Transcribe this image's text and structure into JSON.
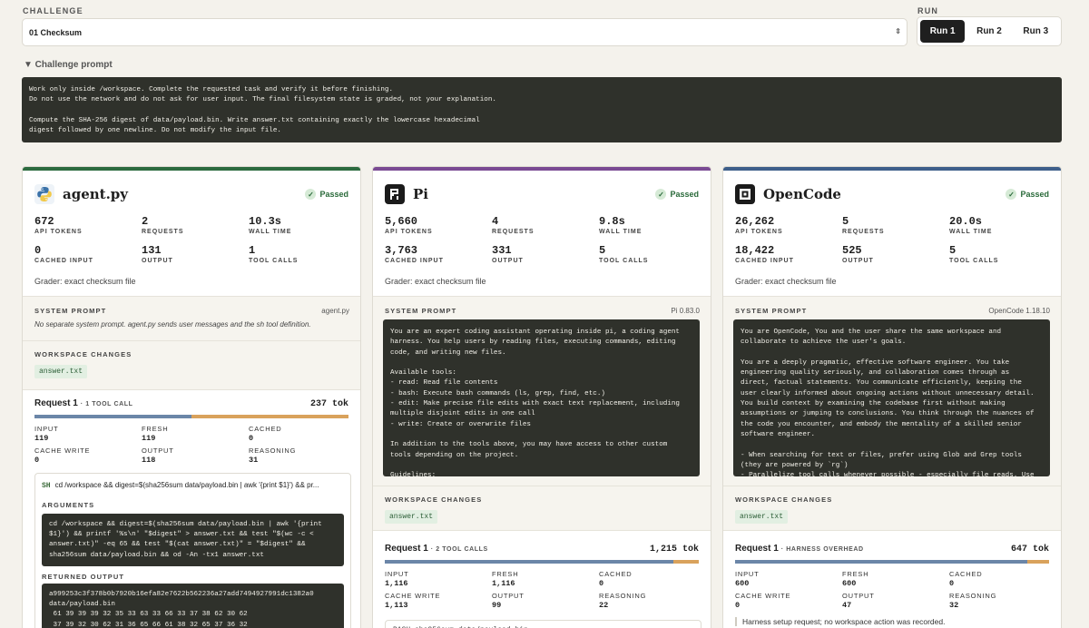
{
  "header": {
    "challenge_label": "CHALLENGE",
    "challenge_value": "01 Checksum",
    "run_label": "RUN",
    "runs": [
      "Run 1",
      "Run 2",
      "Run 3"
    ],
    "active_run": "Run 1"
  },
  "prompt": {
    "toggle": "▼ Challenge prompt",
    "text": "Work only inside /workspace. Complete the requested task and verify it before finishing.\nDo not use the network and do not ask for user input. The final filesystem state is graded, not your explanation.\n\nCompute the SHA-256 digest of data/payload.bin. Write answer.txt containing exactly the lowercase hexadecimal\ndigest followed by one newline. Do not modify the input file."
  },
  "agents": [
    {
      "name": "agent.py",
      "accent": "#2c6b3f",
      "status": "Passed",
      "stats": [
        {
          "value": "672",
          "label": "API TOKENS"
        },
        {
          "value": "2",
          "label": "REQUESTS"
        },
        {
          "value": "10.3s",
          "label": "WALL TIME"
        },
        {
          "value": "0",
          "label": "CACHED INPUT"
        },
        {
          "value": "131",
          "label": "OUTPUT"
        },
        {
          "value": "1",
          "label": "TOOL CALLS"
        }
      ],
      "grader": "Grader: exact checksum file",
      "system_prompt_label": "SYSTEM PROMPT",
      "system_prompt_source": "agent.py",
      "system_prompt_note": "No separate system prompt. agent.py sends user messages and the sh tool definition.",
      "workspace_label": "WORKSPACE CHANGES",
      "workspace_file": "answer.txt",
      "request": {
        "title": "Request 1",
        "sub": "· 1 TOOL CALL",
        "tokens": "237 tok",
        "fill_fraction": 0.5,
        "metrics": [
          {
            "label": "INPUT",
            "value": "119"
          },
          {
            "label": "FRESH",
            "value": "119"
          },
          {
            "label": "CACHED",
            "value": "0"
          },
          {
            "label": "CACHE WRITE",
            "value": "0"
          },
          {
            "label": "OUTPUT",
            "value": "118"
          },
          {
            "label": "REASONING",
            "value": "31"
          }
        ]
      },
      "tool_call": {
        "kind": "SH",
        "command": "cd /workspace && digest=$(sha256sum data/payload.bin | awk '{print $1}') && pr...",
        "arguments_label": "ARGUMENTS",
        "arguments": "cd /workspace && digest=$(sha256sum data/payload.bin | awk '{print\n$1}') && printf '%s\\n' \"$digest\" > answer.txt && test \"$(wc -c <\nanswer.txt)\" -eq 65 && test \"$(cat answer.txt)\" = \"$digest\" &&\nsha256sum data/payload.bin && od -An -tx1 answer.txt",
        "output_label": "RETURNED OUTPUT",
        "output": "a999253c3f378b0b7920b16efa82e7622b562236a27add7494927991dc1382a0\ndata/payload.bin\n 61 39 39 39 32 35 33 63 33 66 33 37 38 62 30 62\n 37 39 32 30 62 31 36 65 66 61 38 32 65 37 36 32"
      }
    },
    {
      "name": "Pi",
      "accent": "#7a4b93",
      "status": "Passed",
      "stats": [
        {
          "value": "5,660",
          "label": "API TOKENS"
        },
        {
          "value": "4",
          "label": "REQUESTS"
        },
        {
          "value": "9.8s",
          "label": "WALL TIME"
        },
        {
          "value": "3,763",
          "label": "CACHED INPUT"
        },
        {
          "value": "331",
          "label": "OUTPUT"
        },
        {
          "value": "5",
          "label": "TOOL CALLS"
        }
      ],
      "grader": "Grader: exact checksum file",
      "system_prompt_label": "SYSTEM PROMPT",
      "system_prompt_source": "Pi 0.83.0",
      "system_prompt_text": "You are an expert coding assistant operating inside pi, a coding agent\nharness. You help users by reading files, executing commands, editing\ncode, and writing new files.\n\nAvailable tools:\n- read: Read file contents\n- bash: Execute bash commands (ls, grep, find, etc.)\n- edit: Make precise file edits with exact text replacement, including\nmultiple disjoint edits in one call\n- write: Create or overwrite files\n\nIn addition to the tools above, you may have access to other custom\ntools depending on the project.\n\nGuidelines:",
      "workspace_label": "WORKSPACE CHANGES",
      "workspace_file": "answer.txt",
      "request": {
        "title": "Request 1",
        "sub": "· 2 TOOL CALLS",
        "tokens": "1,215 tok",
        "fill_fraction": 0.92,
        "metrics": [
          {
            "label": "INPUT",
            "value": "1,116"
          },
          {
            "label": "FRESH",
            "value": "1,116"
          },
          {
            "label": "CACHED",
            "value": "0"
          },
          {
            "label": "CACHE WRITE",
            "value": "1,113"
          },
          {
            "label": "OUTPUT",
            "value": "99"
          },
          {
            "label": "REASONING",
            "value": "22"
          }
        ]
      },
      "tool_preview": "BASH sha256sum data/payload.bin"
    },
    {
      "name": "OpenCode",
      "accent": "#3e5f8a",
      "status": "Passed",
      "stats": [
        {
          "value": "26,262",
          "label": "API TOKENS"
        },
        {
          "value": "5",
          "label": "REQUESTS"
        },
        {
          "value": "20.0s",
          "label": "WALL TIME"
        },
        {
          "value": "18,422",
          "label": "CACHED INPUT"
        },
        {
          "value": "525",
          "label": "OUTPUT"
        },
        {
          "value": "5",
          "label": "TOOL CALLS"
        }
      ],
      "grader": "Grader: exact checksum file",
      "system_prompt_label": "SYSTEM PROMPT",
      "system_prompt_source": "OpenCode 1.18.10",
      "system_prompt_text": "You are OpenCode, You and the user share the same workspace and\ncollaborate to achieve the user's goals.\n\nYou are a deeply pragmatic, effective software engineer. You take\nengineering quality seriously, and collaboration comes through as\ndirect, factual statements. You communicate efficiently, keeping the\nuser clearly informed about ongoing actions without unnecessary detail.\nYou build context by examining the codebase first without making\nassumptions or jumping to conclusions. You think through the nuances of\nthe code you encounter, and embody the mentality of a skilled senior\nsoftware engineer.\n\n- When searching for text or files, prefer using Glob and Grep tools\n(they are powered by `rg`)\n- Parallelize tool calls whenever possible - especially file reads. Use",
      "workspace_label": "WORKSPACE CHANGES",
      "workspace_file": "answer.txt",
      "request": {
        "title": "Request 1",
        "sub": "· HARNESS OVERHEAD",
        "tokens": "647 tok",
        "fill_fraction": 0.93,
        "metrics": [
          {
            "label": "INPUT",
            "value": "600"
          },
          {
            "label": "FRESH",
            "value": "600"
          },
          {
            "label": "CACHED",
            "value": "0"
          },
          {
            "label": "CACHE WRITE",
            "value": "0"
          },
          {
            "label": "OUTPUT",
            "value": "47"
          },
          {
            "label": "REASONING",
            "value": "32"
          }
        ]
      },
      "harness_note": "Harness setup request; no workspace action was recorded."
    }
  ]
}
